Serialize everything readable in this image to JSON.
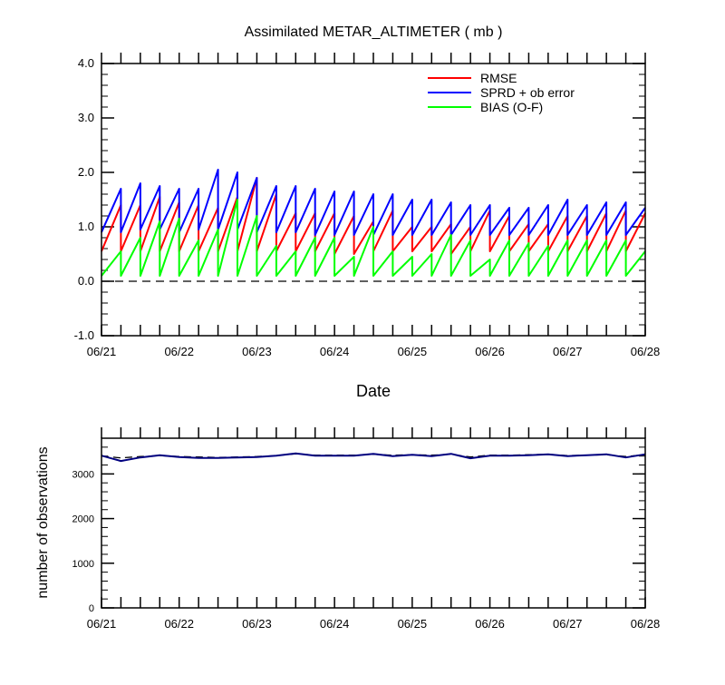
{
  "chart_data": [
    {
      "type": "line",
      "title": "Assimilated METAR_ALTIMETER ( mb )",
      "xlabel": "Date",
      "ylabel": "",
      "ylim": [
        -1.0,
        4.0
      ],
      "yticks": [
        "-1.0",
        "0.0",
        "1.0",
        "2.0",
        "3.0",
        "4.0"
      ],
      "xlim": [
        0,
        7
      ],
      "xtick_labels": [
        "06/21",
        "06/22",
        "06/23",
        "06/24",
        "06/25",
        "06/26",
        "06/27",
        "06/28"
      ],
      "reference_line": 0.0,
      "legend_position": "top-right",
      "series": [
        {
          "name": "RMSE",
          "color": "#ff0000",
          "x": [
            0,
            0.25,
            0.25,
            0.5,
            0.5,
            0.75,
            0.75,
            1.0,
            1.0,
            1.25,
            1.25,
            1.5,
            1.5,
            1.75,
            1.75,
            2.0,
            2.0,
            2.25,
            2.25,
            2.5,
            2.5,
            2.75,
            2.75,
            3.0,
            3.0,
            3.25,
            3.25,
            3.5,
            3.5,
            3.75,
            3.75,
            4.0,
            4.0,
            4.25,
            4.25,
            4.5,
            4.5,
            4.75,
            4.75,
            5.0,
            5.0,
            5.25,
            5.25,
            5.5,
            5.5,
            5.75,
            5.75,
            6.0,
            6.0,
            6.25,
            6.25,
            6.5,
            6.5,
            6.75,
            6.75,
            7.0
          ],
          "y": [
            0.55,
            1.4,
            0.55,
            1.4,
            0.55,
            1.55,
            0.55,
            1.45,
            0.55,
            1.4,
            0.55,
            1.35,
            0.55,
            1.55,
            0.55,
            1.9,
            0.55,
            1.6,
            0.55,
            1.25,
            0.55,
            1.25,
            0.55,
            1.25,
            0.5,
            1.2,
            0.5,
            1.1,
            0.55,
            1.3,
            0.55,
            1.0,
            0.55,
            1.0,
            0.55,
            1.05,
            0.5,
            1.0,
            0.55,
            1.3,
            0.55,
            1.2,
            0.55,
            1.05,
            0.55,
            1.05,
            0.55,
            1.2,
            0.55,
            1.2,
            0.55,
            1.25,
            0.55,
            1.3,
            0.55,
            1.25
          ]
        },
        {
          "name": "SPRD + ob error",
          "color": "#0000ff",
          "x": [
            0,
            0.25,
            0.25,
            0.5,
            0.5,
            0.75,
            0.75,
            1.0,
            1.0,
            1.25,
            1.25,
            1.5,
            1.5,
            1.75,
            1.75,
            2.0,
            2.0,
            2.25,
            2.25,
            2.5,
            2.5,
            2.75,
            2.75,
            3.0,
            3.0,
            3.25,
            3.25,
            3.5,
            3.5,
            3.75,
            3.75,
            4.0,
            4.0,
            4.25,
            4.25,
            4.5,
            4.5,
            4.75,
            4.75,
            5.0,
            5.0,
            5.25,
            5.25,
            5.5,
            5.5,
            5.75,
            5.75,
            6.0,
            6.0,
            6.25,
            6.25,
            6.5,
            6.5,
            6.75,
            6.75,
            7.0
          ],
          "y": [
            0.9,
            1.7,
            0.9,
            1.8,
            0.95,
            1.75,
            0.95,
            1.7,
            0.9,
            1.7,
            0.95,
            2.05,
            0.95,
            2.0,
            0.95,
            1.9,
            0.9,
            1.75,
            0.9,
            1.75,
            0.9,
            1.7,
            0.85,
            1.65,
            0.85,
            1.65,
            0.85,
            1.6,
            0.85,
            1.6,
            0.85,
            1.5,
            0.85,
            1.5,
            0.85,
            1.45,
            0.85,
            1.4,
            0.85,
            1.4,
            0.85,
            1.35,
            0.85,
            1.35,
            0.85,
            1.4,
            0.85,
            1.5,
            0.85,
            1.4,
            0.85,
            1.45,
            0.85,
            1.45,
            0.85,
            1.35
          ]
        },
        {
          "name": "BIAS (O-F)",
          "color": "#00ff00",
          "x": [
            0,
            0.25,
            0.25,
            0.5,
            0.5,
            0.75,
            0.75,
            1.0,
            1.0,
            1.25,
            1.25,
            1.5,
            1.5,
            1.75,
            1.75,
            2.0,
            2.0,
            2.25,
            2.25,
            2.5,
            2.5,
            2.75,
            2.75,
            3.0,
            3.0,
            3.25,
            3.25,
            3.5,
            3.5,
            3.75,
            3.75,
            4.0,
            4.0,
            4.25,
            4.25,
            4.5,
            4.5,
            4.75,
            4.75,
            5.0,
            5.0,
            5.25,
            5.25,
            5.5,
            5.5,
            5.75,
            5.75,
            6.0,
            6.0,
            6.25,
            6.25,
            6.5,
            6.5,
            6.75,
            6.75,
            7.0
          ],
          "y": [
            0.1,
            0.55,
            0.1,
            0.8,
            0.1,
            1.1,
            0.1,
            1.15,
            0.1,
            0.75,
            0.1,
            0.95,
            0.1,
            1.5,
            0.1,
            1.2,
            0.1,
            0.65,
            0.1,
            0.55,
            0.1,
            0.8,
            0.1,
            0.8,
            0.1,
            0.45,
            0.1,
            1.0,
            0.1,
            0.55,
            0.1,
            0.45,
            0.1,
            0.5,
            0.1,
            0.85,
            0.1,
            0.75,
            0.1,
            0.4,
            0.1,
            0.75,
            0.1,
            0.7,
            0.1,
            0.65,
            0.1,
            0.75,
            0.1,
            0.75,
            0.1,
            0.75,
            0.1,
            0.75,
            0.1,
            0.55
          ]
        }
      ]
    },
    {
      "type": "line",
      "title": "",
      "xlabel": "",
      "ylabel": "number of observations",
      "ylim": [
        0,
        3800
      ],
      "yticks": [
        "0",
        "1000",
        "2000",
        "3000"
      ],
      "xlim": [
        0,
        7
      ],
      "xtick_labels": [
        "06/21",
        "06/22",
        "06/23",
        "06/24",
        "06/25",
        "06/26",
        "06/27",
        "06/28"
      ],
      "series": [
        {
          "color": "#000000",
          "dashed": true,
          "x": [
            0,
            0.25,
            0.5,
            0.75,
            1.0,
            1.25,
            1.5,
            1.75,
            2.0,
            2.25,
            2.5,
            2.75,
            3.0,
            3.25,
            3.5,
            3.75,
            4.0,
            4.25,
            4.5,
            4.75,
            5.0,
            5.25,
            5.5,
            5.75,
            6.0,
            6.25,
            6.5,
            6.75,
            7.0
          ],
          "y": [
            3400,
            3360,
            3390,
            3410,
            3390,
            3380,
            3370,
            3380,
            3390,
            3410,
            3450,
            3420,
            3420,
            3420,
            3440,
            3420,
            3430,
            3420,
            3440,
            3380,
            3420,
            3420,
            3430,
            3440,
            3410,
            3420,
            3430,
            3390,
            3430
          ]
        },
        {
          "color": "#00007f",
          "dashed": false,
          "x": [
            0,
            0.25,
            0.5,
            0.75,
            1.0,
            1.25,
            1.5,
            1.75,
            2.0,
            2.25,
            2.5,
            2.75,
            3.0,
            3.25,
            3.5,
            3.75,
            4.0,
            4.25,
            4.5,
            4.75,
            5.0,
            5.25,
            5.5,
            5.75,
            6.0,
            6.25,
            6.5,
            6.75,
            7.0
          ],
          "y": [
            3410,
            3290,
            3370,
            3420,
            3380,
            3360,
            3360,
            3370,
            3380,
            3410,
            3460,
            3410,
            3410,
            3410,
            3450,
            3400,
            3430,
            3400,
            3450,
            3350,
            3410,
            3410,
            3420,
            3440,
            3400,
            3420,
            3440,
            3370,
            3440
          ]
        }
      ]
    }
  ]
}
